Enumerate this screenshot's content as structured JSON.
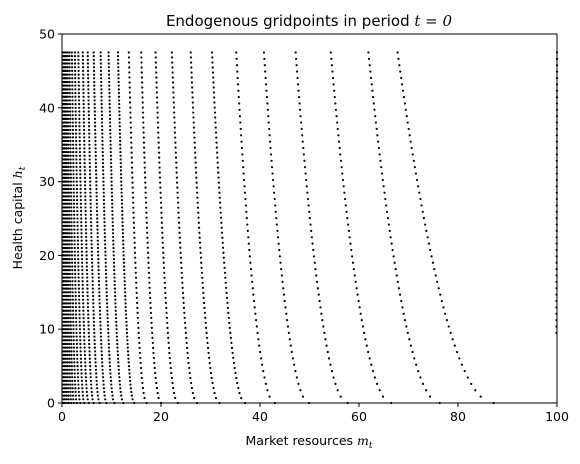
{
  "chart_data": {
    "type": "scatter",
    "title": "Endogenous gridpoints in period",
    "title_math": "t = 0",
    "xlabel": "Market resources",
    "xlabel_math": "m",
    "xlabel_sub": "t",
    "ylabel": "Health capital",
    "ylabel_math": "h",
    "ylabel_sub": "t",
    "xlim": [
      0,
      100
    ],
    "ylim": [
      0,
      50
    ],
    "xticks": [
      0,
      20,
      40,
      60,
      80,
      100
    ],
    "yticks": [
      0,
      10,
      20,
      30,
      40,
      50
    ],
    "marker_color": "#000000",
    "grid": false,
    "legend": false,
    "curve_model": {
      "description_of_pattern": "gridpoints lie on curves, one per asset level; each curve starts near its right end at h=0 and bends left toward higher h",
      "curve_base_m_at_h0": [
        0.3,
        0.6,
        1.0,
        1.4,
        1.9,
        2.4,
        3.0,
        3.7,
        4.5,
        5.4,
        6.4,
        7.6,
        9.0,
        10.6,
        12.4,
        14.6,
        17.1,
        20.0,
        23.4,
        27.3,
        31.8,
        37.0,
        43.0,
        49.9,
        57.7,
        66.5,
        76.3,
        87.2,
        99.8
      ],
      "curve_top_m_at_h47": [
        0.1,
        0.2,
        0.4,
        0.6,
        0.8,
        1.1,
        1.5,
        2.0,
        2.6,
        3.3,
        4.2,
        5.2,
        6.4,
        7.8,
        9.4,
        11.3,
        13.5,
        16.0,
        18.9,
        22.2,
        26.0,
        30.3,
        35.2,
        40.8,
        47.2,
        54.3,
        61.9,
        67.8,
        100.0
      ],
      "h_levels_dense_region": 95,
      "h_max": 47.5
    }
  }
}
